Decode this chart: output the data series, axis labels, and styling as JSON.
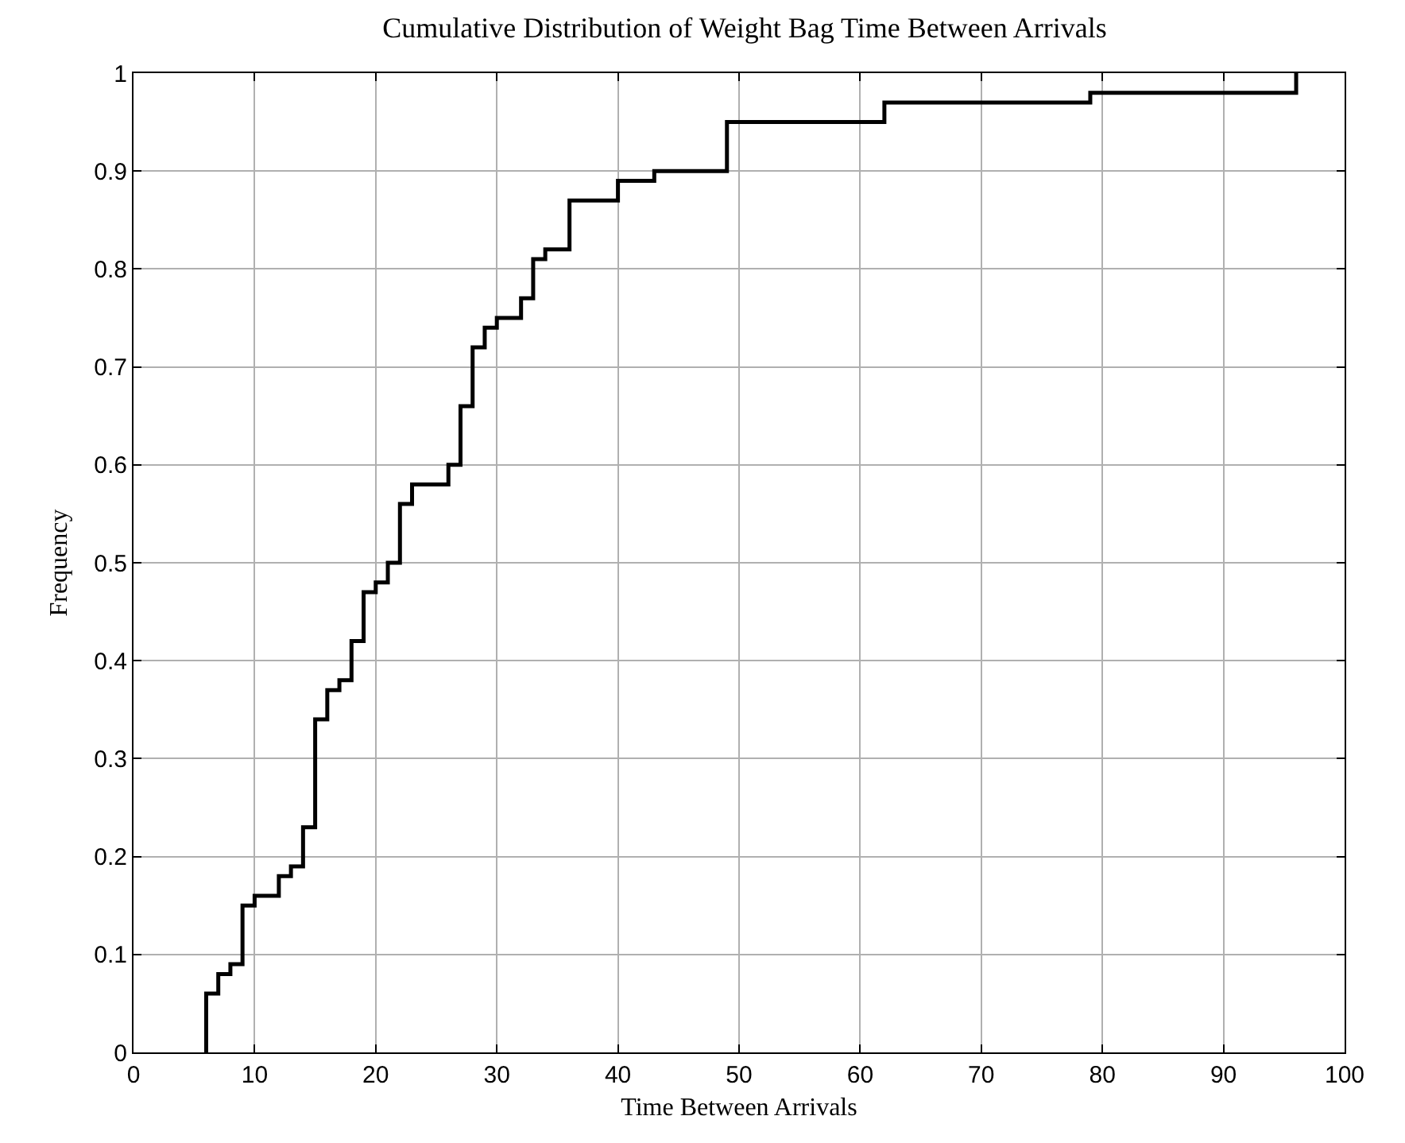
{
  "chart_data": {
    "type": "step",
    "title": "Cumulative Distribution of Weight Bag Time Between Arrivals",
    "xlabel": "Time Between Arrivals",
    "ylabel": "Frequency",
    "x": [
      6,
      6,
      7,
      8,
      9,
      10,
      12,
      13,
      14,
      15,
      16,
      17,
      18,
      19,
      20,
      21,
      22,
      23,
      26,
      27,
      28,
      29,
      30,
      32,
      33,
      34,
      36,
      40,
      43,
      49,
      62,
      79,
      96
    ],
    "series": [
      {
        "color": "#000000",
        "values": [
          0,
          0.06,
          0.08,
          0.09,
          0.15,
          0.16,
          0.18,
          0.19,
          0.23,
          0.34,
          0.37,
          0.38,
          0.42,
          0.47,
          0.48,
          0.5,
          0.56,
          0.58,
          0.6,
          0.66,
          0.72,
          0.74,
          0.75,
          0.77,
          0.81,
          0.82,
          0.87,
          0.89,
          0.9,
          0.95,
          0.97,
          0.98,
          1
        ]
      }
    ],
    "xlim": [
      0,
      100
    ],
    "xticks": [
      0,
      10,
      20,
      30,
      40,
      50,
      60,
      70,
      80,
      90,
      100
    ],
    "ylim": [
      0,
      1
    ],
    "yticks": [
      0,
      0.1,
      0.2,
      0.3,
      0.4,
      0.5,
      0.6,
      0.7,
      0.8,
      0.9,
      1
    ],
    "grid": true,
    "marker": "none",
    "line_style": "solid"
  }
}
